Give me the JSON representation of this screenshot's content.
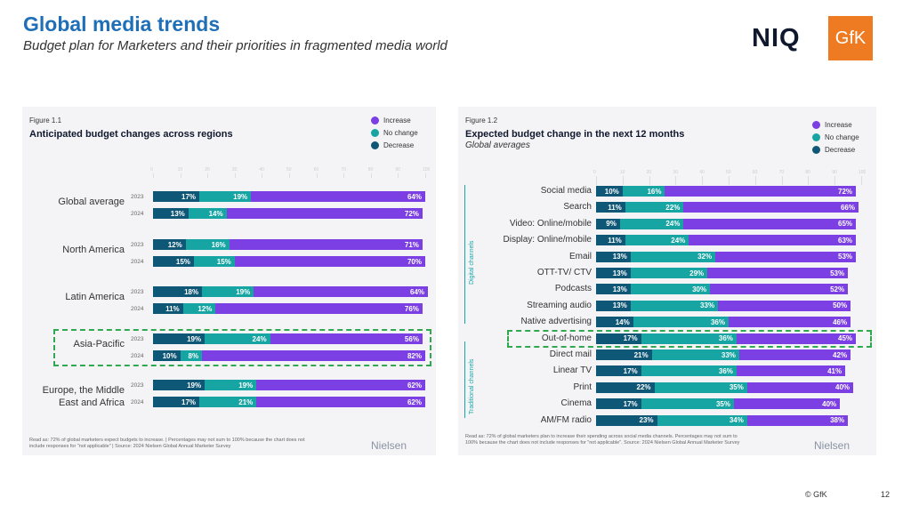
{
  "header": {
    "title": "Global media trends",
    "subtitle": "Budget plan for Marketers and their priorities in fragmented media world",
    "logo_niq": "NIQ",
    "logo_gfk": "GfK"
  },
  "colors": {
    "increase": "#7b3fe4",
    "no_change": "#17a5a3",
    "decrease": "#0f5776"
  },
  "legend": [
    "Increase",
    "No change",
    "Decrease"
  ],
  "chart_data": [
    {
      "type": "bar",
      "orientation": "horizontal",
      "stacked": true,
      "figure": "Figure 1.1",
      "title": "Anticipated budget changes across regions",
      "xlim": [
        0,
        100
      ],
      "ticks": [
        0,
        10,
        20,
        30,
        40,
        50,
        60,
        70,
        80,
        90,
        100
      ],
      "groups": [
        {
          "label": "Global average",
          "rows": [
            {
              "year": "2023",
              "decrease": 17,
              "no_change": 19,
              "increase": 64
            },
            {
              "year": "2024",
              "decrease": 13,
              "no_change": 14,
              "increase": 72
            }
          ]
        },
        {
          "label": "North America",
          "rows": [
            {
              "year": "2023",
              "decrease": 12,
              "no_change": 16,
              "increase": 71
            },
            {
              "year": "2024",
              "decrease": 15,
              "no_change": 15,
              "increase": 70
            }
          ]
        },
        {
          "label": "Latin America",
          "rows": [
            {
              "year": "2023",
              "decrease": 18,
              "no_change": 19,
              "increase": 64
            },
            {
              "year": "2024",
              "decrease": 11,
              "no_change": 12,
              "increase": 76
            }
          ]
        },
        {
          "label": "Asia-Pacific",
          "highlight": true,
          "rows": [
            {
              "year": "2023",
              "decrease": 19,
              "no_change": 24,
              "increase": 56
            },
            {
              "year": "2024",
              "decrease": 10,
              "no_change": 8,
              "increase": 82
            }
          ]
        },
        {
          "label": "Europe, the Middle East and Africa",
          "rows": [
            {
              "year": "2023",
              "decrease": 19,
              "no_change": 19,
              "increase": 62
            },
            {
              "year": "2024",
              "decrease": 17,
              "no_change": 21,
              "increase": 62
            }
          ]
        }
      ],
      "note": "Read as: 72% of global marketers expect budgets to increase.  |  Percentages may not sum to 100% because the chart does not include responses for \"not applicable\"  |  Source: 2024 Nielsen Global Annual Marketer Survey",
      "brand": "Nielsen"
    },
    {
      "type": "bar",
      "orientation": "horizontal",
      "stacked": true,
      "figure": "Figure 1.2",
      "title": "Expected budget change in the next 12 months",
      "subtitle": "Global averages",
      "xlim": [
        0,
        100
      ],
      "ticks": [
        0,
        10,
        20,
        30,
        40,
        50,
        60,
        70,
        80,
        90,
        100
      ],
      "bracket_labels": [
        "Digital channels",
        "Traditional channels"
      ],
      "rows": [
        {
          "label": "Social media",
          "decrease": 10,
          "no_change": 16,
          "increase": 72
        },
        {
          "label": "Search",
          "decrease": 11,
          "no_change": 22,
          "increase": 66
        },
        {
          "label": "Video: Online/mobile",
          "decrease": 9,
          "no_change": 24,
          "increase": 65
        },
        {
          "label": "Display: Online/mobile",
          "decrease": 11,
          "no_change": 24,
          "increase": 63
        },
        {
          "label": "Email",
          "decrease": 13,
          "no_change": 32,
          "increase": 53
        },
        {
          "label": "OTT-TV/ CTV",
          "decrease": 13,
          "no_change": 29,
          "increase": 53
        },
        {
          "label": "Podcasts",
          "decrease": 13,
          "no_change": 30,
          "increase": 52
        },
        {
          "label": "Streaming audio",
          "decrease": 13,
          "no_change": 33,
          "increase": 50
        },
        {
          "label": "Native advertising",
          "decrease": 14,
          "no_change": 36,
          "increase": 46
        },
        {
          "label": "Out-of-home",
          "decrease": 17,
          "no_change": 36,
          "increase": 45,
          "highlight": true
        },
        {
          "label": "Direct mail",
          "decrease": 21,
          "no_change": 33,
          "increase": 42
        },
        {
          "label": "Linear TV",
          "decrease": 17,
          "no_change": 36,
          "increase": 41
        },
        {
          "label": "Print",
          "decrease": 22,
          "no_change": 35,
          "increase": 40
        },
        {
          "label": "Cinema",
          "decrease": 17,
          "no_change": 35,
          "increase": 40
        },
        {
          "label": "AM/FM radio",
          "decrease": 23,
          "no_change": 34,
          "increase": 38
        }
      ],
      "note": "Read as: 72% of global marketers plan to increase their spending across social media channels. Percentages may not sum to 100% because the chart does not include responses for \"not applicable\". Source: 2024 Nielsen Global Annual Marketer Survey",
      "brand": "Nielsen"
    }
  ],
  "footer": {
    "copyright": "© GfK",
    "page": "12"
  }
}
